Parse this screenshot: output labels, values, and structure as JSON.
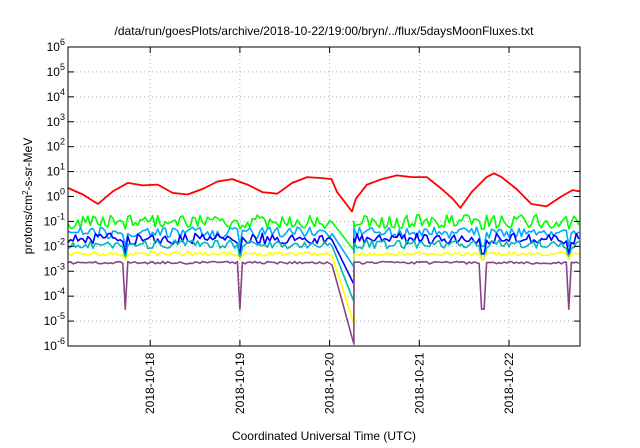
{
  "chart_data": {
    "type": "line",
    "title": "/data/run/goesPlots/archive/2018-10-22/19:00/bryn/../flux/5daysMoonFluxes.txt",
    "xlabel": "Coordinated Universal Time (UTC)",
    "ylabel": {
      "base": "protons/cm",
      "sup": "2",
      "rest": "-s-sr-MeV"
    },
    "x_range": [
      "2018-10-17T02:00",
      "2018-10-22T19:00"
    ],
    "x_ticks": [
      "2018-10-18",
      "2018-10-19",
      "2018-10-20",
      "2018-10-21",
      "2018-10-22"
    ],
    "y_scale": "log",
    "ylim": [
      1e-06,
      1000000.0
    ],
    "y_ticks": [
      {
        "base": "10",
        "exp": "-6"
      },
      {
        "base": "10",
        "exp": "-5"
      },
      {
        "base": "10",
        "exp": "-4"
      },
      {
        "base": "10",
        "exp": "-3"
      },
      {
        "base": "10",
        "exp": "-2"
      },
      {
        "base": "10",
        "exp": "-1"
      },
      {
        "base": "10",
        "exp": "0"
      },
      {
        "base": "10",
        "exp": "1"
      },
      {
        "base": "10",
        "exp": "2"
      },
      {
        "base": "10",
        "exp": "3"
      },
      {
        "base": "10",
        "exp": "4"
      },
      {
        "base": "10",
        "exp": "5"
      },
      {
        "base": "10",
        "exp": "6"
      }
    ],
    "grid": true,
    "legend": "none",
    "gap": {
      "start": "2018-10-20T00:30",
      "end": "2018-10-20T06:30"
    },
    "dips": [
      "2018-10-17T17:30",
      "2018-10-18T23:50",
      "2018-10-21T17:00",
      "2018-10-22T16:00"
    ],
    "series": [
      {
        "color": "#ff0000",
        "values": [
          [
            "2018-10-17T02:00",
            2.2
          ],
          [
            "2018-10-17T06:00",
            1.2
          ],
          [
            "2018-10-17T10:00",
            0.5
          ],
          [
            "2018-10-17T14:00",
            1.6
          ],
          [
            "2018-10-17T18:00",
            3.5
          ],
          [
            "2018-10-17T22:00",
            2.8
          ],
          [
            "2018-10-18T02:00",
            3.0
          ],
          [
            "2018-10-18T06:00",
            1.4
          ],
          [
            "2018-10-18T10:00",
            1.2
          ],
          [
            "2018-10-18T14:00",
            2.0
          ],
          [
            "2018-10-18T18:00",
            4.0
          ],
          [
            "2018-10-18T22:00",
            5.0
          ],
          [
            "2018-10-19T02:00",
            3.0
          ],
          [
            "2018-10-19T06:00",
            1.5
          ],
          [
            "2018-10-19T10:00",
            1.3
          ],
          [
            "2018-10-19T14:00",
            3.5
          ],
          [
            "2018-10-19T18:00",
            6.0
          ],
          [
            "2018-10-19T22:00",
            5.5
          ],
          [
            "2018-10-20T00:30",
            5.0
          ],
          [
            "2018-10-20T02:00",
            1.5
          ],
          [
            "2018-10-20T06:00",
            0.25
          ],
          [
            "2018-10-20T07:00",
            0.8
          ],
          [
            "2018-10-20T10:00",
            3.0
          ],
          [
            "2018-10-20T14:00",
            5.0
          ],
          [
            "2018-10-20T18:00",
            7.0
          ],
          [
            "2018-10-20T22:00",
            6.0
          ],
          [
            "2018-10-21T02:00",
            6.0
          ],
          [
            "2018-10-21T06:00",
            2.0
          ],
          [
            "2018-10-21T09:00",
            0.8
          ],
          [
            "2018-10-21T11:00",
            0.35
          ],
          [
            "2018-10-21T14:00",
            1.5
          ],
          [
            "2018-10-21T18:00",
            6.0
          ],
          [
            "2018-10-21T20:00",
            8.5
          ],
          [
            "2018-10-21T22:00",
            6.0
          ],
          [
            "2018-10-22T02:00",
            2.0
          ],
          [
            "2018-10-22T06:00",
            0.5
          ],
          [
            "2018-10-22T10:00",
            0.4
          ],
          [
            "2018-10-22T14:00",
            1.0
          ],
          [
            "2018-10-22T17:00",
            1.8
          ],
          [
            "2018-10-22T19:00",
            1.6
          ]
        ]
      },
      {
        "color": "#00ff00",
        "base": 0.1,
        "noise": 0.55,
        "dip_to": 0.05,
        "gap_to": 0.007
      },
      {
        "color": "#00aaff",
        "base": 0.035,
        "noise": 0.45,
        "dip_to": 0.01,
        "gap_to": 0.0015
      },
      {
        "color": "#0000ff",
        "base": 0.02,
        "noise": 0.45,
        "dip_to": 0.005,
        "gap_to": 0.0003
      },
      {
        "color": "#00b8b8",
        "base": 0.012,
        "noise": 0.35,
        "dip_to": 0.003,
        "gap_to": 6e-05
      },
      {
        "color": "#ffff00",
        "base": 0.005,
        "noise": 0.15,
        "dip_to": 0.003,
        "gap_to": 8e-06
      },
      {
        "color": "#884488",
        "base": 0.0022,
        "noise": 0.1,
        "dip_to": 3e-05,
        "gap_to": 1.2e-06
      }
    ]
  }
}
